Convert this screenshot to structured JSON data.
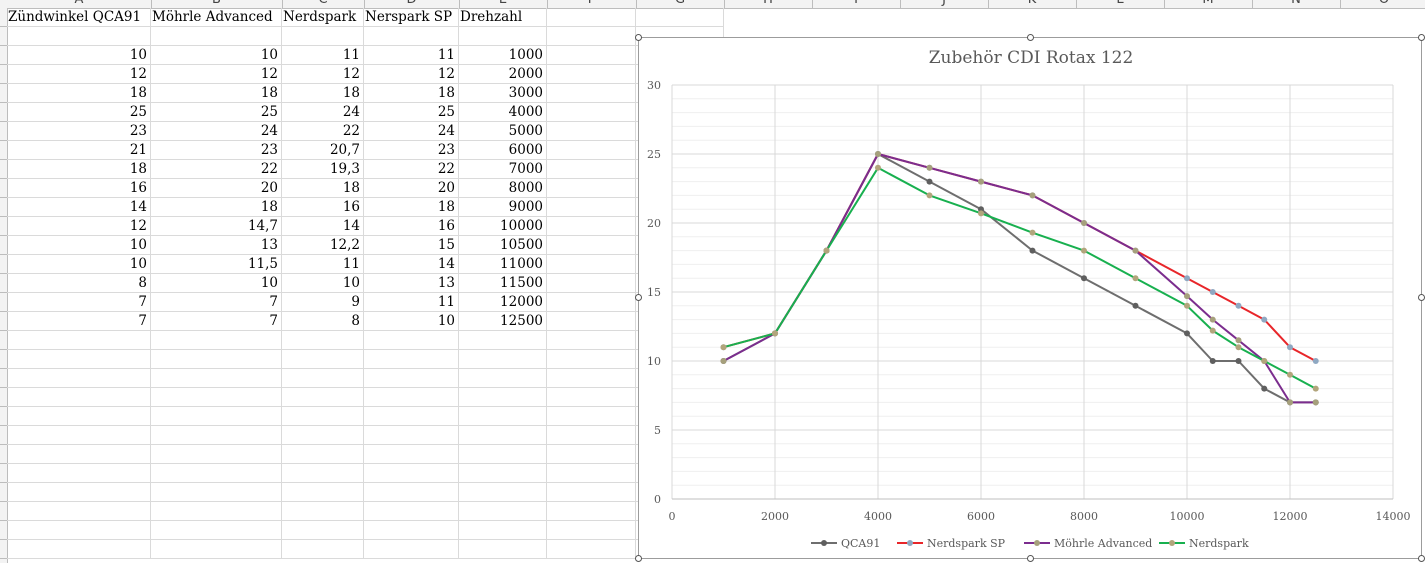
{
  "sheet": {
    "column_letters": [
      "A",
      "B",
      "C",
      "D",
      "E",
      "F",
      "G",
      "H",
      "I",
      "J",
      "K",
      "L",
      "M",
      "N",
      "O"
    ],
    "headers": [
      "Zündwinkel QCA91",
      "Möhrle Advanced",
      "Nerdspark",
      "Nerspark SP",
      "Drehzahl"
    ],
    "rows": [
      [
        "10",
        "10",
        "11",
        "11",
        "1000"
      ],
      [
        "12",
        "12",
        "12",
        "12",
        "2000"
      ],
      [
        "18",
        "18",
        "18",
        "18",
        "3000"
      ],
      [
        "25",
        "25",
        "24",
        "25",
        "4000"
      ],
      [
        "23",
        "24",
        "22",
        "24",
        "5000"
      ],
      [
        "21",
        "23",
        "20,7",
        "23",
        "6000"
      ],
      [
        "18",
        "22",
        "19,3",
        "22",
        "7000"
      ],
      [
        "16",
        "20",
        "18",
        "20",
        "8000"
      ],
      [
        "14",
        "18",
        "16",
        "18",
        "9000"
      ],
      [
        "12",
        "14,7",
        "14",
        "16",
        "10000"
      ],
      [
        "10",
        "13",
        "12,2",
        "15",
        "10500"
      ],
      [
        "10",
        "11,5",
        "11",
        "14",
        "11000"
      ],
      [
        "8",
        "10",
        "10",
        "13",
        "11500"
      ],
      [
        "7",
        "7",
        "9",
        "11",
        "12000"
      ],
      [
        "7",
        "7",
        "8",
        "10",
        "12500"
      ]
    ]
  },
  "chart_data": {
    "type": "line",
    "title": "Zubehör CDI Rotax 122",
    "x": [
      1000,
      2000,
      3000,
      4000,
      5000,
      6000,
      7000,
      8000,
      9000,
      10000,
      10500,
      11000,
      11500,
      12000,
      12500
    ],
    "xlim": [
      0,
      14000
    ],
    "ylim": [
      0,
      30
    ],
    "x_ticks": [
      0,
      2000,
      4000,
      6000,
      8000,
      10000,
      12000,
      14000
    ],
    "y_ticks": [
      0,
      5,
      10,
      15,
      20,
      25,
      30
    ],
    "grid": true,
    "legend_position": "bottom",
    "series": [
      {
        "name": "QCA91",
        "color": "#6e6e6e",
        "marker": "#5f5f5f",
        "values": [
          10,
          12,
          18,
          25,
          23,
          21,
          18,
          16,
          14,
          12,
          10,
          10,
          8,
          7,
          7
        ]
      },
      {
        "name": "Nerdspark SP",
        "color": "#e8262a",
        "marker": "#8fa8c2",
        "values": [
          11,
          12,
          18,
          25,
          24,
          23,
          22,
          20,
          18,
          16,
          15,
          14,
          13,
          11,
          10
        ]
      },
      {
        "name": "Möhrle Advanced",
        "color": "#7b2d8e",
        "marker": "#a6a07c",
        "values": [
          10,
          12,
          18,
          25,
          24,
          23,
          22,
          20,
          18,
          14.7,
          13,
          11.5,
          10,
          7,
          7
        ]
      },
      {
        "name": "Nerdspark",
        "color": "#18b04f",
        "marker": "#b2a57c",
        "values": [
          11,
          12,
          18,
          24,
          22,
          20.7,
          19.3,
          18,
          16,
          14,
          12.2,
          11,
          10,
          9,
          8
        ]
      }
    ]
  }
}
